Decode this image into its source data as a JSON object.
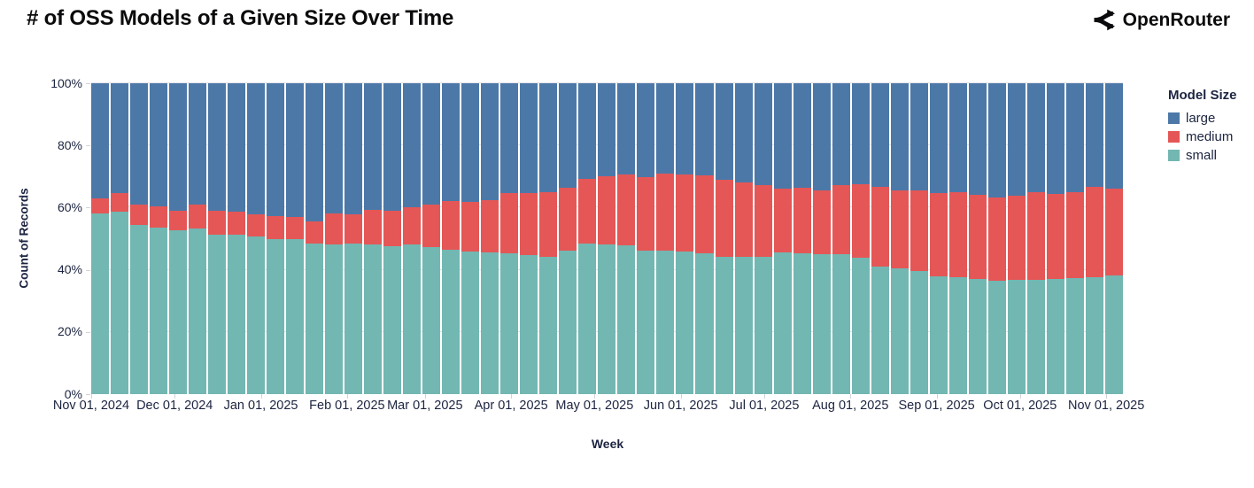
{
  "page": {
    "title": "# of OSS Models of a Given Size Over Time",
    "brand": "OpenRouter"
  },
  "chart_data": {
    "type": "bar",
    "variant": "stacked-normalized-100pct",
    "title": "# of OSS Models of a Given Size Over Time",
    "xlabel": "Week",
    "ylabel": "Count of Records",
    "ylim": [
      0,
      100
    ],
    "grid": true,
    "legend": {
      "title": "Model Size",
      "position": "right",
      "entries": [
        {
          "label": "large",
          "color": "#4C78A8"
        },
        {
          "label": "medium",
          "color": "#E45756"
        },
        {
          "label": "small",
          "color": "#72B7B2"
        }
      ]
    },
    "y_ticks": [
      {
        "value": 0,
        "label": "0%"
      },
      {
        "value": 20,
        "label": "20%"
      },
      {
        "value": 40,
        "label": "40%"
      },
      {
        "value": 60,
        "label": "60%"
      },
      {
        "value": 80,
        "label": "80%"
      },
      {
        "value": 100,
        "label": "100%"
      }
    ],
    "x_ticks": [
      {
        "date": "2024-11-01",
        "label": "Nov 01, 2024"
      },
      {
        "date": "2024-12-01",
        "label": "Dec 01, 2024"
      },
      {
        "date": "2025-01-01",
        "label": "Jan 01, 2025"
      },
      {
        "date": "2025-02-01",
        "label": "Feb 01, 2025"
      },
      {
        "date": "2025-03-01",
        "label": "Mar 01, 2025"
      },
      {
        "date": "2025-04-01",
        "label": "Apr 01, 2025"
      },
      {
        "date": "2025-05-01",
        "label": "May 01, 2025"
      },
      {
        "date": "2025-06-01",
        "label": "Jun 01, 2025"
      },
      {
        "date": "2025-07-01",
        "label": "Jul 01, 2025"
      },
      {
        "date": "2025-08-01",
        "label": "Aug 01, 2025"
      },
      {
        "date": "2025-09-01",
        "label": "Sep 01, 2025"
      },
      {
        "date": "2025-10-01",
        "label": "Oct 01, 2025"
      },
      {
        "date": "2025-11-01",
        "label": "Nov 01, 2025"
      }
    ],
    "weeks": [
      "2024-11-01",
      "2024-11-08",
      "2024-11-15",
      "2024-11-22",
      "2024-11-29",
      "2024-12-06",
      "2024-12-13",
      "2024-12-20",
      "2024-12-27",
      "2025-01-03",
      "2025-01-10",
      "2025-01-17",
      "2025-01-24",
      "2025-01-31",
      "2025-02-07",
      "2025-02-14",
      "2025-02-21",
      "2025-02-28",
      "2025-03-07",
      "2025-03-14",
      "2025-03-21",
      "2025-03-28",
      "2025-04-04",
      "2025-04-11",
      "2025-04-18",
      "2025-04-25",
      "2025-05-02",
      "2025-05-09",
      "2025-05-16",
      "2025-05-23",
      "2025-05-30",
      "2025-06-06",
      "2025-06-13",
      "2025-06-20",
      "2025-06-27",
      "2025-07-04",
      "2025-07-11",
      "2025-07-18",
      "2025-07-25",
      "2025-08-01",
      "2025-08-08",
      "2025-08-15",
      "2025-08-22",
      "2025-08-29",
      "2025-09-05",
      "2025-09-12",
      "2025-09-19",
      "2025-09-26",
      "2025-10-03",
      "2025-10-10",
      "2025-10-17",
      "2025-10-24",
      "2025-10-31"
    ],
    "stack_order_bottom_to_top": [
      "small",
      "medium",
      "large"
    ],
    "series": [
      {
        "name": "large",
        "color": "#4C78A8",
        "values": [
          37.0,
          35.4,
          38.9,
          39.5,
          40.9,
          38.9,
          41.1,
          41.4,
          42.1,
          42.7,
          43.0,
          44.4,
          41.8,
          42.1,
          40.7,
          41.1,
          39.9,
          38.9,
          37.8,
          38.1,
          37.6,
          35.4,
          35.2,
          35.0,
          33.5,
          30.7,
          30.0,
          29.4,
          30.2,
          29.1,
          29.4,
          29.7,
          31.0,
          31.9,
          32.9,
          33.8,
          33.5,
          34.5,
          32.9,
          32.4,
          33.4,
          34.5,
          34.5,
          35.2,
          35.0,
          35.9,
          36.7,
          36.2,
          35.1,
          35.7,
          35.0,
          33.3,
          34.0
        ]
      },
      {
        "name": "medium",
        "color": "#E45756",
        "values": [
          4.8,
          6.0,
          6.8,
          7.0,
          6.4,
          7.9,
          7.6,
          7.3,
          7.3,
          7.3,
          7.0,
          7.2,
          10.0,
          9.5,
          11.2,
          11.2,
          12.0,
          13.8,
          15.7,
          16.1,
          16.8,
          19.3,
          20.0,
          20.7,
          20.3,
          20.9,
          21.9,
          22.6,
          23.6,
          24.8,
          24.8,
          25.0,
          24.7,
          23.8,
          22.8,
          20.6,
          21.2,
          20.6,
          22.2,
          23.7,
          25.7,
          25.1,
          25.8,
          26.8,
          27.3,
          27.1,
          26.7,
          27.0,
          28.1,
          27.3,
          27.8,
          29.2,
          27.8
        ]
      },
      {
        "name": "small",
        "color": "#72B7B2",
        "values": [
          58.2,
          58.6,
          54.3,
          53.5,
          52.7,
          53.2,
          51.3,
          51.3,
          50.6,
          50.0,
          50.0,
          48.4,
          48.2,
          48.4,
          48.1,
          47.7,
          48.1,
          47.3,
          46.5,
          45.8,
          45.6,
          45.3,
          44.8,
          44.3,
          46.2,
          48.4,
          48.1,
          48.0,
          46.2,
          46.1,
          45.8,
          45.3,
          44.3,
          44.3,
          44.3,
          45.6,
          45.3,
          44.9,
          44.9,
          43.9,
          40.9,
          40.4,
          39.7,
          38.0,
          37.7,
          37.0,
          36.6,
          36.8,
          36.8,
          37.0,
          37.2,
          37.5,
          38.2
        ]
      }
    ]
  }
}
